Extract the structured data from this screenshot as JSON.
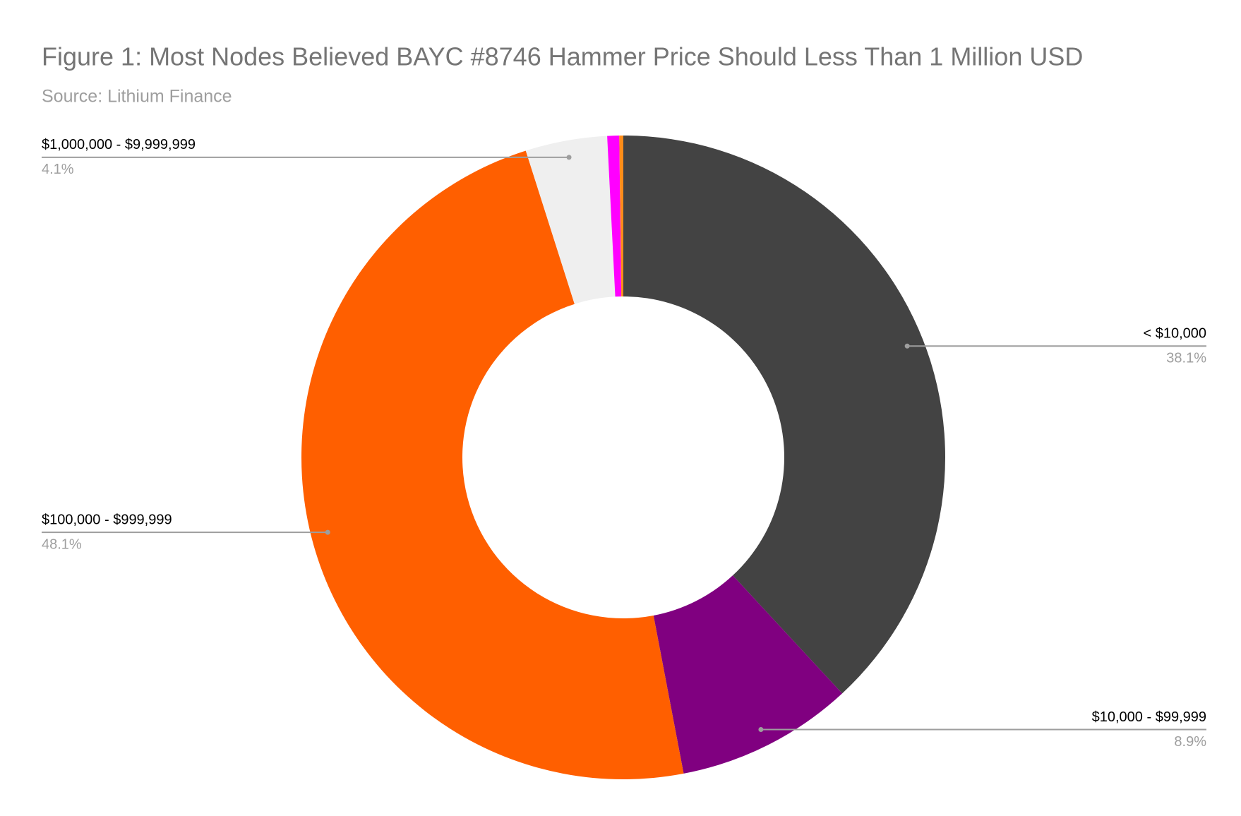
{
  "chart_data": {
    "type": "donut",
    "title": "Figure 1: Most Nodes Believed BAYC #8746 Hammer Price Should Less Than 1 Million USD",
    "subtitle": "Source: Lithium Finance",
    "categories": [
      "< $10,000",
      "$10,000 - $99,999",
      "$100,000 - $999,999",
      "$1,000,000 - $9,999,999",
      null,
      null
    ],
    "values": [
      38.1,
      8.9,
      48.1,
      4.1,
      0.6,
      0.2
    ],
    "value_labels": [
      "38.1%",
      "8.9%",
      "48.1%",
      "4.1%",
      null,
      null
    ],
    "colors": [
      "#434343",
      "#800080",
      "#ff5f00",
      "#efefef",
      "#ff00ff",
      "#ff8c1a"
    ]
  }
}
